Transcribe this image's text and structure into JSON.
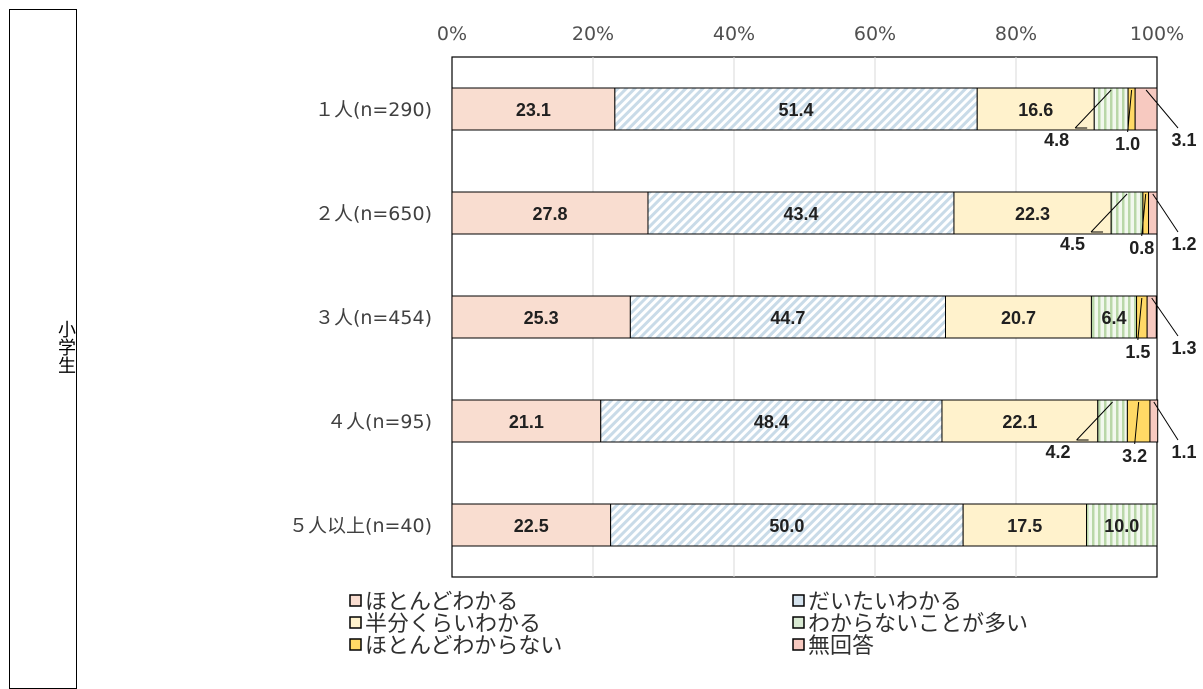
{
  "group_label": "小学生",
  "chart_data": {
    "type": "bar",
    "orientation": "horizontal",
    "stacked": "100%",
    "categories": [
      "１人(n=290)",
      "２人(n=650)",
      "３人(n=454)",
      "４人(n=95)",
      "５人以上(n=40)"
    ],
    "x_ticks": [
      "0%",
      "20%",
      "40%",
      "60%",
      "80%",
      "100%"
    ],
    "xlim": [
      0,
      100
    ],
    "grid": true,
    "legend_position": "bottom",
    "series": [
      {
        "name": "ほとんどわかる",
        "color": "#f9ddd0",
        "pattern": "solid",
        "values": [
          23.1,
          27.8,
          25.3,
          21.1,
          22.5
        ]
      },
      {
        "name": "だいたいわかる",
        "color": "#d5e3ee",
        "pattern": "diagonal",
        "values": [
          51.4,
          43.4,
          44.7,
          48.4,
          50.0
        ]
      },
      {
        "name": "半分くらいわかる",
        "color": "#fff2cc",
        "pattern": "solid",
        "values": [
          16.6,
          22.3,
          20.7,
          22.1,
          17.5
        ]
      },
      {
        "name": "わからないことが多い",
        "color": "#d9ead3",
        "pattern": "vertical",
        "values": [
          4.8,
          4.5,
          6.4,
          4.2,
          10.0
        ]
      },
      {
        "name": "ほとんどわからない",
        "color": "#ffd966",
        "pattern": "solid",
        "values": [
          1.0,
          0.8,
          1.5,
          3.2,
          0
        ]
      },
      {
        "name": "無回答",
        "color": "#f7c9c0",
        "pattern": "solid",
        "values": [
          3.1,
          1.2,
          1.3,
          1.1,
          0
        ]
      }
    ],
    "value_labels": [
      [
        "23.1",
        "51.4",
        "16.6",
        "4.8",
        "1.0",
        "3.1"
      ],
      [
        "27.8",
        "43.4",
        "22.3",
        "4.5",
        "0.8",
        "1.2"
      ],
      [
        "25.3",
        "44.7",
        "20.7",
        "6.4",
        "1.5",
        "1.3"
      ],
      [
        "21.1",
        "48.4",
        "22.1",
        "4.2",
        "3.2",
        "1.1"
      ],
      [
        "22.5",
        "50.0",
        "17.5",
        "10.0",
        "",
        ""
      ]
    ]
  }
}
